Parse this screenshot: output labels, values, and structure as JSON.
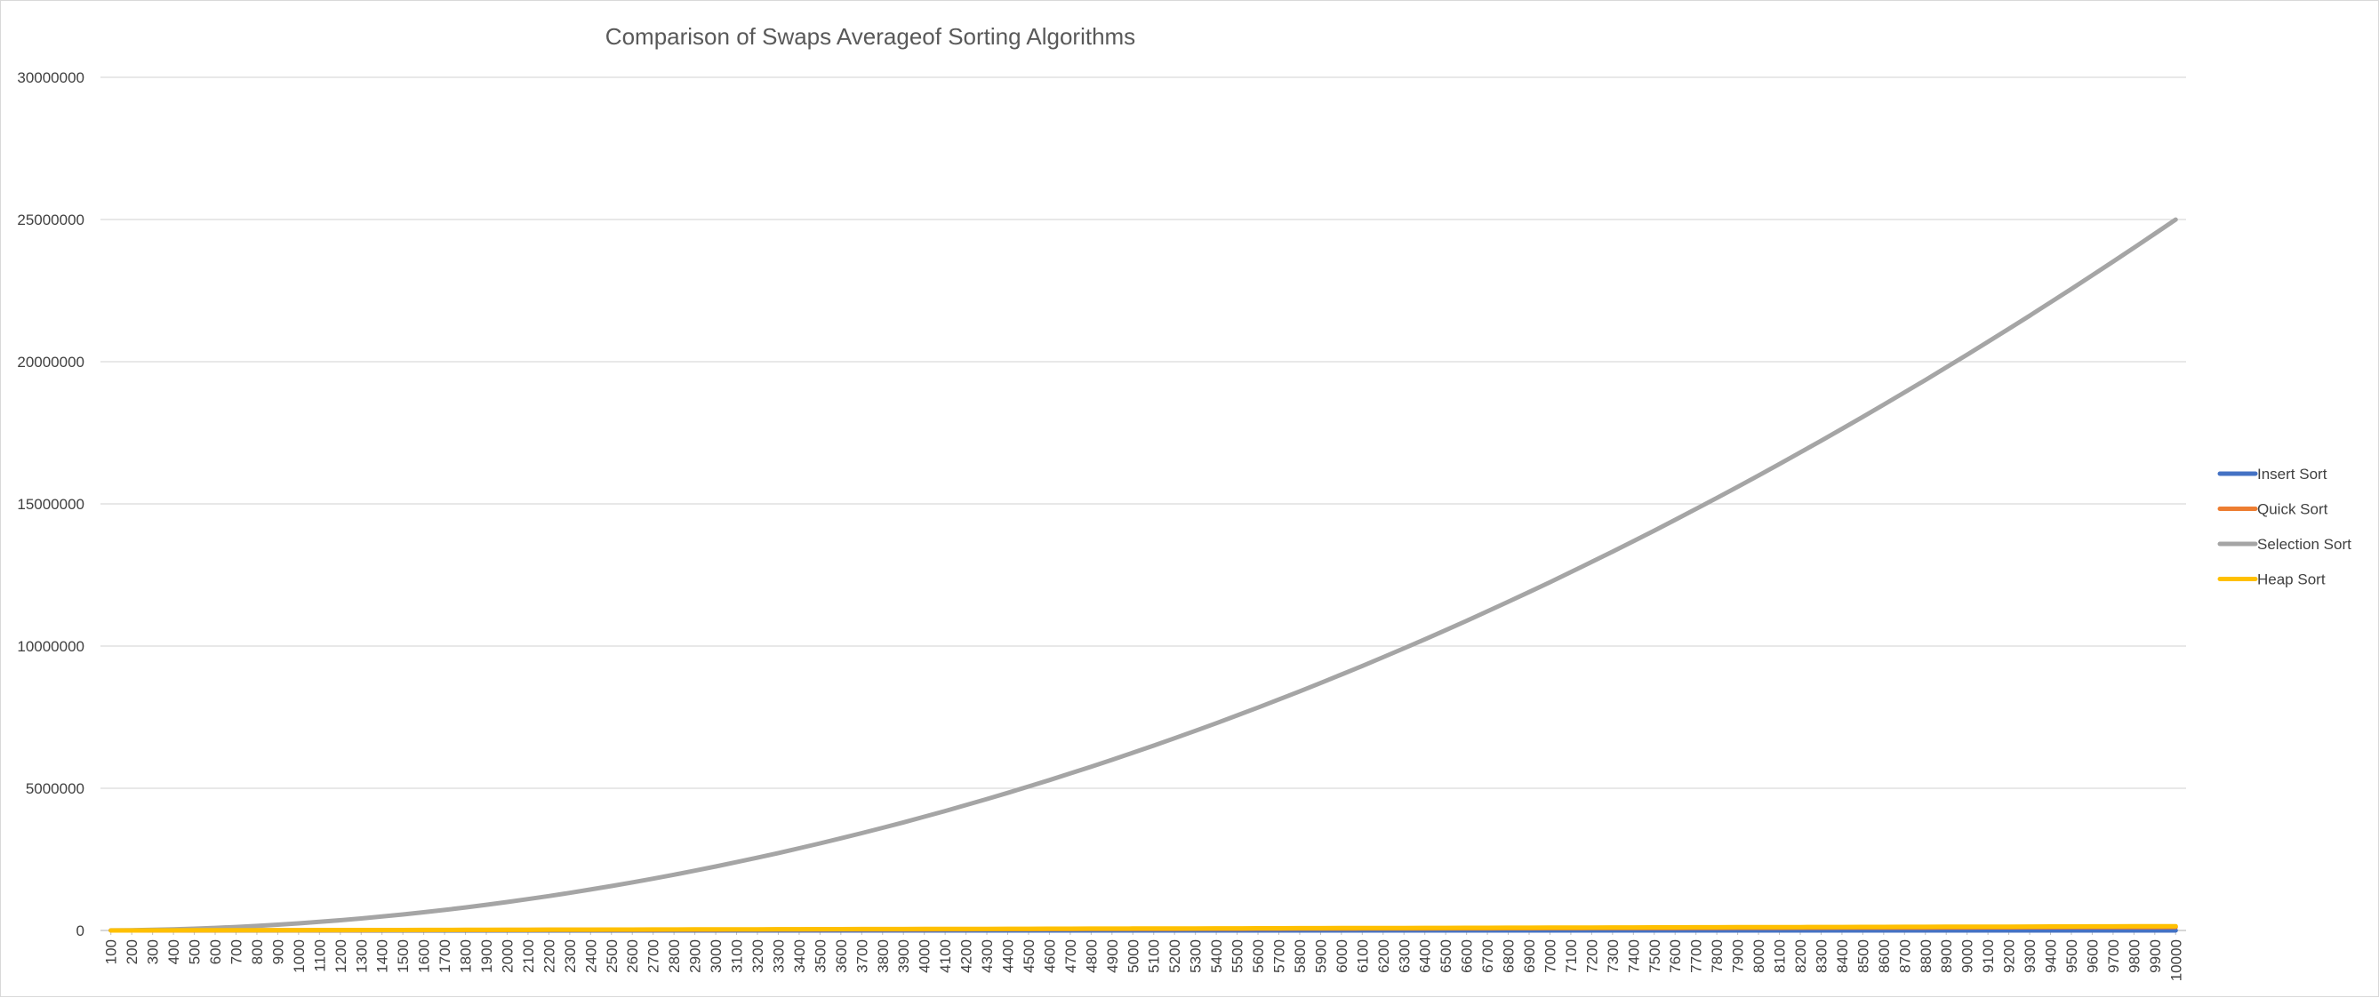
{
  "chart_data": {
    "type": "line",
    "title": "Comparison of Swaps Averageof Sorting Algorithms",
    "xlabel": "",
    "ylabel": "",
    "ylim": [
      0,
      30000000
    ],
    "yticks": [
      "0",
      "5000000",
      "10000000",
      "15000000",
      "20000000",
      "25000000",
      "30000000"
    ],
    "x": [
      100,
      200,
      300,
      400,
      500,
      600,
      700,
      800,
      900,
      1000,
      1100,
      1200,
      1300,
      1400,
      1500,
      1600,
      1700,
      1800,
      1900,
      2000,
      2100,
      2200,
      2300,
      2400,
      2500,
      2600,
      2700,
      2800,
      2900,
      3000,
      3100,
      3200,
      3300,
      3400,
      3500,
      3600,
      3700,
      3800,
      3900,
      4000,
      4100,
      4200,
      4300,
      4400,
      4500,
      4600,
      4700,
      4800,
      4900,
      5000,
      5100,
      5200,
      5300,
      5400,
      5500,
      5600,
      5700,
      5800,
      5900,
      6000,
      6100,
      6200,
      6300,
      6400,
      6500,
      6600,
      6700,
      6800,
      6900,
      7000,
      7100,
      7200,
      7300,
      7400,
      7500,
      7600,
      7700,
      7800,
      7900,
      8000,
      8100,
      8200,
      8300,
      8400,
      8500,
      8600,
      8700,
      8800,
      8900,
      9000,
      9100,
      9200,
      9300,
      9400,
      9500,
      9600,
      9700,
      9800,
      9900,
      10000
    ],
    "grid": true,
    "legend_position": "right",
    "series": [
      {
        "name": "Insert Sort",
        "color": "#4472C4",
        "values": [
          0,
          0,
          0,
          0,
          0,
          0,
          0,
          0,
          0,
          0,
          0,
          0,
          0,
          0,
          0,
          0,
          0,
          0,
          0,
          0,
          0,
          0,
          0,
          0,
          0,
          0,
          0,
          0,
          0,
          0,
          0,
          0,
          0,
          0,
          0,
          0,
          0,
          0,
          0,
          0,
          0,
          0,
          0,
          0,
          0,
          0,
          0,
          0,
          0,
          0,
          0,
          0,
          0,
          0,
          0,
          0,
          0,
          0,
          0,
          0,
          0,
          0,
          0,
          0,
          0,
          0,
          0,
          0,
          0,
          0,
          0,
          0,
          0,
          0,
          0,
          0,
          0,
          0,
          0,
          0,
          0,
          0,
          0,
          0,
          0,
          0,
          0,
          0,
          0,
          0,
          0,
          0,
          0,
          0,
          0,
          0,
          0,
          0,
          0,
          0
        ]
      },
      {
        "name": "Quick Sort",
        "color": "#ED7D31",
        "values": [
          500,
          1100,
          1800,
          2600,
          3400,
          4200,
          5100,
          6000,
          6900,
          7900,
          8800,
          9800,
          10800,
          11800,
          12800,
          13900,
          14900,
          16000,
          17100,
          18200,
          19300,
          20400,
          21500,
          22600,
          23800,
          24900,
          26100,
          27200,
          28400,
          29600,
          30800,
          32000,
          33200,
          34400,
          35600,
          36800,
          38000,
          39200,
          40400,
          41700,
          42900,
          44100,
          45400,
          46600,
          47900,
          49100,
          50400,
          51600,
          52900,
          54200,
          55500,
          56700,
          58000,
          59300,
          60600,
          61900,
          63200,
          64500,
          65800,
          67100,
          68400,
          69700,
          71000,
          72300,
          73600,
          75000,
          76300,
          77600,
          78900,
          80300,
          81600,
          82900,
          84300,
          85600,
          87000,
          88300,
          89700,
          91000,
          92400,
          93700,
          95100,
          96400,
          97800,
          99200,
          100500,
          101900,
          103300,
          104600,
          106000,
          107400,
          108800,
          110100,
          111500,
          112900,
          114300,
          115700,
          117100,
          118500,
          119800,
          121200
        ]
      },
      {
        "name": "Selection Sort",
        "color": "#A5A5A5",
        "values": [
          2475,
          9950,
          22425,
          39900,
          62375,
          89850,
          122325,
          159800,
          202275,
          249750,
          302225,
          359700,
          422175,
          489650,
          562125,
          639600,
          722075,
          809550,
          902025,
          999500,
          1101975,
          1209450,
          1321925,
          1439400,
          1561875,
          1689350,
          1821825,
          1959300,
          2101775,
          2249250,
          2401725,
          2559200,
          2721675,
          2889150,
          3061625,
          3239100,
          3421575,
          3609050,
          3801525,
          3999000,
          4201475,
          4408950,
          4621425,
          4838900,
          5061375,
          5288850,
          5521325,
          5758800,
          6001275,
          6248750,
          6501225,
          6758700,
          7021175,
          7288650,
          7561125,
          7838600,
          8121075,
          8408550,
          8701025,
          8998500,
          9300975,
          9608450,
          9920925,
          10238400,
          10560875,
          10888350,
          11220825,
          11558300,
          11900775,
          12248250,
          12600725,
          12958200,
          13320675,
          13688150,
          14060625,
          14438100,
          14820575,
          15208050,
          15600525,
          15998000,
          16400475,
          16807950,
          17220425,
          17637900,
          18060375,
          18487850,
          18920325,
          19357800,
          19800275,
          20247750,
          20700225,
          21157700,
          21620175,
          22087650,
          22560125,
          23037600,
          23520075,
          24007550,
          24500025,
          24997500
        ]
      },
      {
        "name": "Heap Sort",
        "color": "#FFC000",
        "values": [
          600,
          1500,
          2500,
          3600,
          4700,
          5800,
          7000,
          8200,
          9400,
          10700,
          11900,
          13200,
          14500,
          15800,
          17100,
          18400,
          19800,
          21100,
          22500,
          23900,
          25300,
          26700,
          28100,
          29500,
          30900,
          32300,
          33800,
          35200,
          36700,
          38100,
          39600,
          41100,
          42500,
          44000,
          45500,
          47000,
          48500,
          50000,
          51500,
          53000,
          54500,
          56000,
          57600,
          59100,
          60600,
          62200,
          63700,
          65300,
          66800,
          68400,
          69900,
          71500,
          73000,
          74600,
          76200,
          77700,
          79300,
          80900,
          82500,
          84000,
          85600,
          87200,
          88800,
          90400,
          92000,
          93600,
          95200,
          96800,
          98400,
          100000,
          101600,
          103200,
          104800,
          106500,
          108100,
          109700,
          111300,
          113000,
          114600,
          116200,
          117800,
          119500,
          121100,
          122700,
          124400,
          126000,
          127700,
          129300,
          130900,
          132600,
          134200,
          135900,
          137500,
          139200,
          140800,
          142500,
          144200,
          145800,
          147500,
          149100
        ]
      }
    ]
  }
}
